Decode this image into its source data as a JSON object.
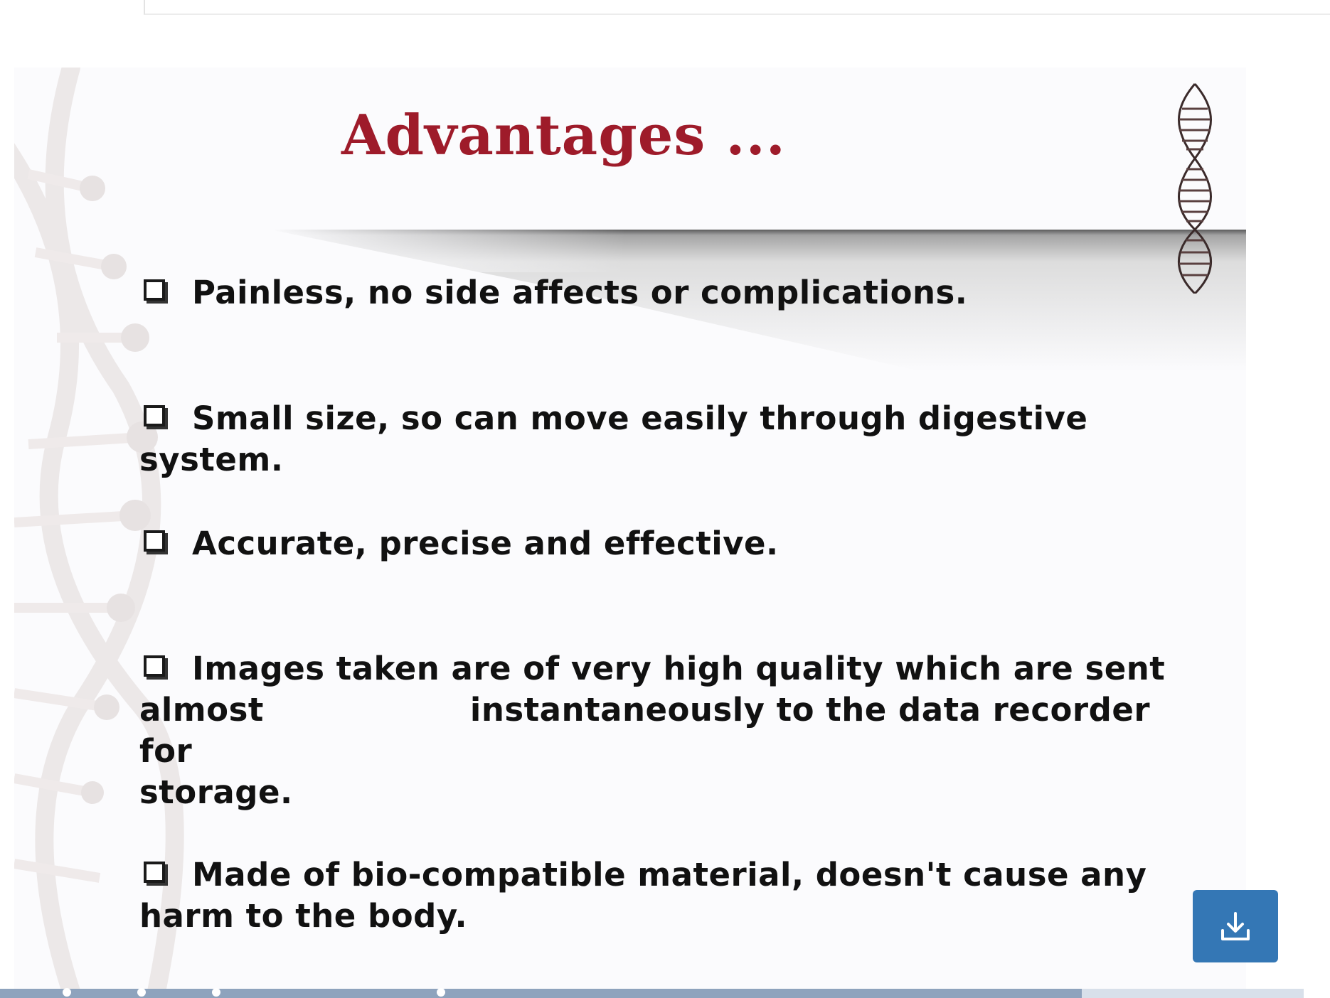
{
  "slide": {
    "title": "Advantages ...",
    "bullets": [
      "Painless, no side affects or complications.",
      "Small size, so can move easily through digestive system.",
      "Accurate, precise and effective.",
      "Images taken are of very high quality which are sent",
      "Made of bio-compatible material, doesn't cause any harm to the body."
    ],
    "bullet4_line2a": "almost",
    "bullet4_line2b": "instantaneously to the data recorder for",
    "bullet4_line3": "storage."
  },
  "colors": {
    "title": "#9e1b2a",
    "text": "#111111",
    "download_button": "#3477b5",
    "progress_fill": "#8ea3bd",
    "progress_track": "#d8e0ea"
  },
  "icons": {
    "download": "download-icon",
    "bullet": "checkbox-bullet-icon",
    "decoration": "dna-helix-icon"
  },
  "progress": {
    "value_percent": 83
  }
}
